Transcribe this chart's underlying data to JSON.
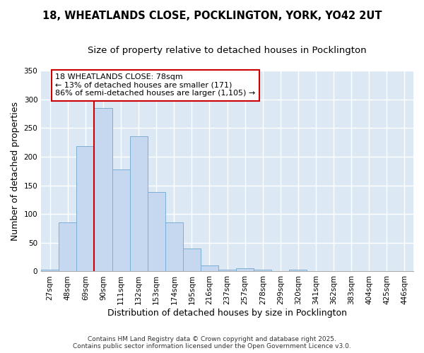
{
  "title_line1": "18, WHEATLANDS CLOSE, POCKLINGTON, YORK, YO42 2UT",
  "title_line2": "Size of property relative to detached houses in Pocklington",
  "xlabel": "Distribution of detached houses by size in Pocklington",
  "ylabel": "Number of detached properties",
  "categories": [
    "27sqm",
    "48sqm",
    "69sqm",
    "90sqm",
    "111sqm",
    "132sqm",
    "153sqm",
    "174sqm",
    "195sqm",
    "216sqm",
    "237sqm",
    "257sqm",
    "278sqm",
    "299sqm",
    "320sqm",
    "341sqm",
    "362sqm",
    "383sqm",
    "404sqm",
    "425sqm",
    "446sqm"
  ],
  "values": [
    3,
    86,
    218,
    285,
    178,
    235,
    138,
    86,
    40,
    10,
    3,
    5,
    3,
    0,
    3,
    0,
    0,
    1,
    0,
    0,
    1
  ],
  "bar_color": "#c5d8f0",
  "bar_edge_color": "#7bafd4",
  "bar_width": 1.0,
  "vline_x": 2.5,
  "vline_color": "#cc0000",
  "annotation_text": "18 WHEATLANDS CLOSE: 78sqm\n← 13% of detached houses are smaller (171)\n86% of semi-detached houses are larger (1,105) →",
  "annotation_box_color": "#ffffff",
  "annotation_box_edge_color": "#cc0000",
  "ylim": [
    0,
    350
  ],
  "yticks": [
    0,
    50,
    100,
    150,
    200,
    250,
    300,
    350
  ],
  "background_color": "#dce9f5",
  "grid_color": "#ffffff",
  "footer": "Contains HM Land Registry data © Crown copyright and database right 2025.\nContains public sector information licensed under the Open Government Licence v3.0.",
  "title_fontsize": 10.5,
  "subtitle_fontsize": 9.5,
  "axis_label_fontsize": 9,
  "tick_fontsize": 7.5,
  "annotation_fontsize": 8,
  "footer_fontsize": 6.5
}
